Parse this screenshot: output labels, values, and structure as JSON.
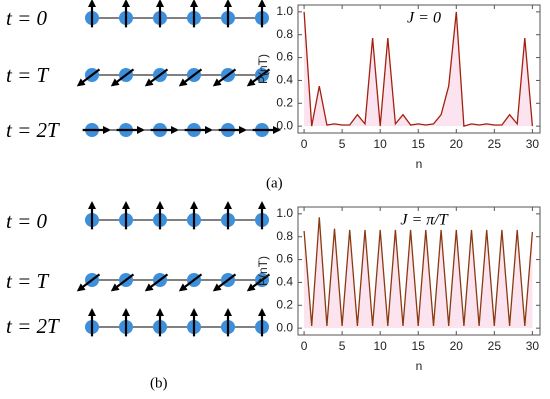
{
  "chart_data": [
    {
      "type": "line",
      "x": [
        0,
        1,
        2,
        3,
        4,
        5,
        6,
        7,
        8,
        9,
        10,
        11,
        12,
        13,
        14,
        15,
        16,
        17,
        18,
        19,
        20,
        21,
        22,
        23,
        24,
        25,
        26,
        27,
        28,
        29,
        30
      ],
      "values": [
        1.0,
        0.0,
        0.35,
        0.01,
        0.02,
        0.01,
        0.01,
        0.1,
        0.02,
        0.77,
        0.0,
        0.77,
        0.02,
        0.1,
        0.01,
        0.02,
        0.01,
        0.02,
        0.1,
        0.35,
        1.0,
        0.0,
        0.02,
        0.01,
        0.02,
        0.01,
        0.01,
        0.1,
        0.02,
        0.77,
        0.0
      ],
      "color": "#a4200e",
      "area_color": "#fbe3ef",
      "xlabel": "n",
      "ylabel": "P(nT)",
      "annotation": "J = 0",
      "xlim": [
        -0.8,
        31
      ],
      "ylim": [
        -0.06,
        1.06
      ],
      "xticks": [
        0,
        5,
        10,
        15,
        20,
        25,
        30
      ],
      "yticks": [
        {
          "value": 0,
          "label": "0.0"
        },
        {
          "value": 0.2,
          "label": "0.2"
        },
        {
          "value": 0.4,
          "label": "0.4"
        },
        {
          "value": 0.6,
          "label": "0.6"
        },
        {
          "value": 0.8,
          "label": "0.8"
        },
        {
          "value": 1,
          "label": "1.0"
        }
      ]
    },
    {
      "type": "line",
      "x": [
        0,
        1,
        2,
        3,
        4,
        5,
        6,
        7,
        8,
        9,
        10,
        11,
        12,
        13,
        14,
        15,
        16,
        17,
        18,
        19,
        20,
        21,
        22,
        23,
        24,
        25,
        26,
        27,
        28,
        29,
        30
      ],
      "values": [
        0.85,
        0.02,
        0.97,
        0.02,
        0.87,
        0.02,
        0.86,
        0.02,
        0.86,
        0.02,
        0.86,
        0.02,
        0.86,
        0.02,
        0.86,
        0.02,
        0.86,
        0.02,
        0.86,
        0.02,
        0.86,
        0.02,
        0.86,
        0.02,
        0.86,
        0.02,
        0.86,
        0.02,
        0.86,
        0.02,
        0.84
      ],
      "color": "#8a3a10",
      "area_color": "#fbe3ef",
      "xlabel": "n",
      "ylabel": "P(nT)",
      "annotation": "J = π/T",
      "xlim": [
        -0.8,
        31
      ],
      "ylim": [
        -0.06,
        1.06
      ],
      "xticks": [
        0,
        5,
        10,
        15,
        20,
        25,
        30
      ],
      "yticks": [
        {
          "value": 0,
          "label": "0.0"
        },
        {
          "value": 0.2,
          "label": "0.2"
        },
        {
          "value": 0.4,
          "label": "0.4"
        },
        {
          "value": 0.6,
          "label": "0.6"
        },
        {
          "value": 0.8,
          "label": "0.8"
        },
        {
          "value": 1,
          "label": "1.0"
        }
      ]
    }
  ],
  "diagram_a": {
    "labels": [
      "t = 0",
      "t = T",
      "t = 2T"
    ]
  },
  "diagram_b": {
    "labels": [
      "t = 0",
      "t = T",
      "t = 2T"
    ]
  },
  "panel_labels": [
    "(a)",
    "(b)"
  ]
}
